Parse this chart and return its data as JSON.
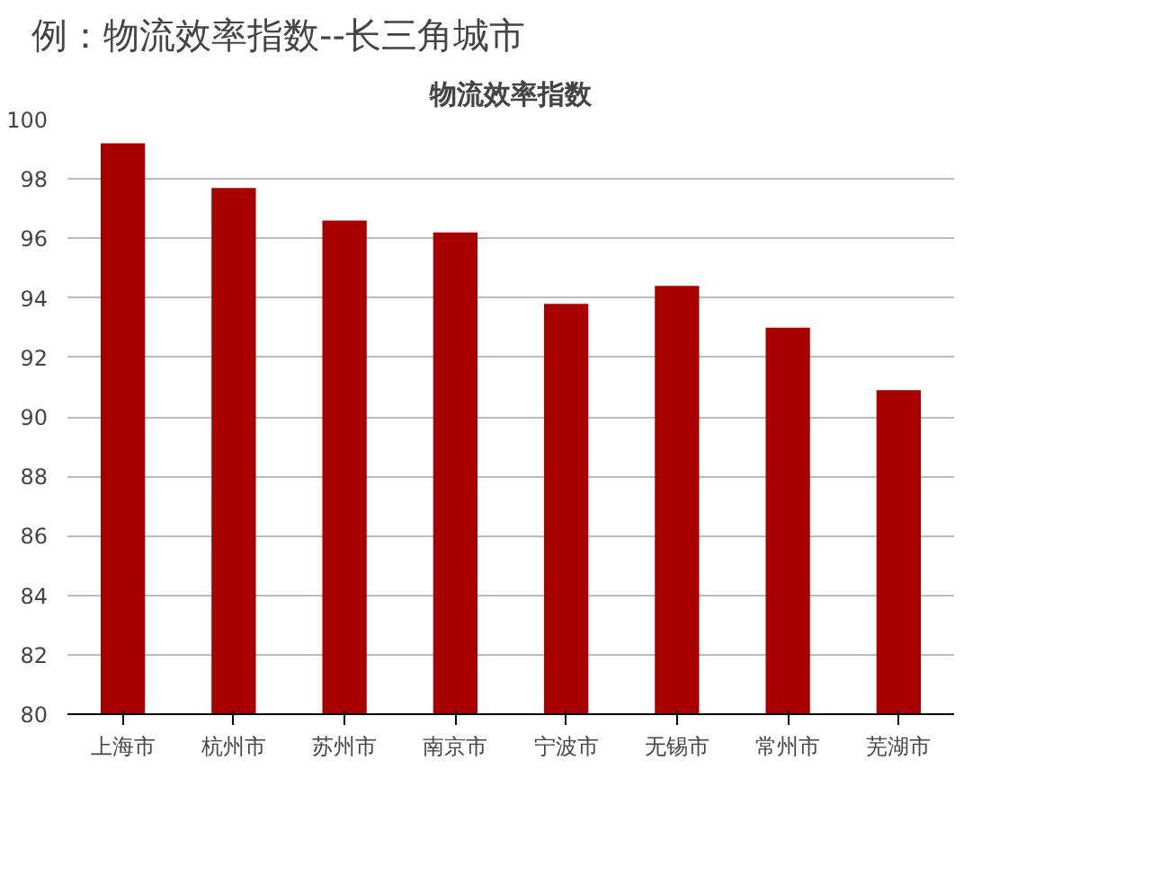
{
  "chart_data": {
    "type": "bar",
    "title": "例：物流效率指数--长三角城市",
    "subtitle": "物流效率指数",
    "categories": [
      "上海市",
      "杭州市",
      "苏州市",
      "南京市",
      "宁波市",
      "无锡市",
      "常州市",
      "芜湖市"
    ],
    "values": [
      99.2,
      97.7,
      96.6,
      96.2,
      93.8,
      94.4,
      93.0,
      90.9
    ],
    "color": "#a80000",
    "ylim": [
      80,
      100
    ],
    "yticks": [
      80,
      82,
      84,
      86,
      88,
      90,
      92,
      94,
      96,
      98,
      100
    ],
    "grid": "y"
  }
}
